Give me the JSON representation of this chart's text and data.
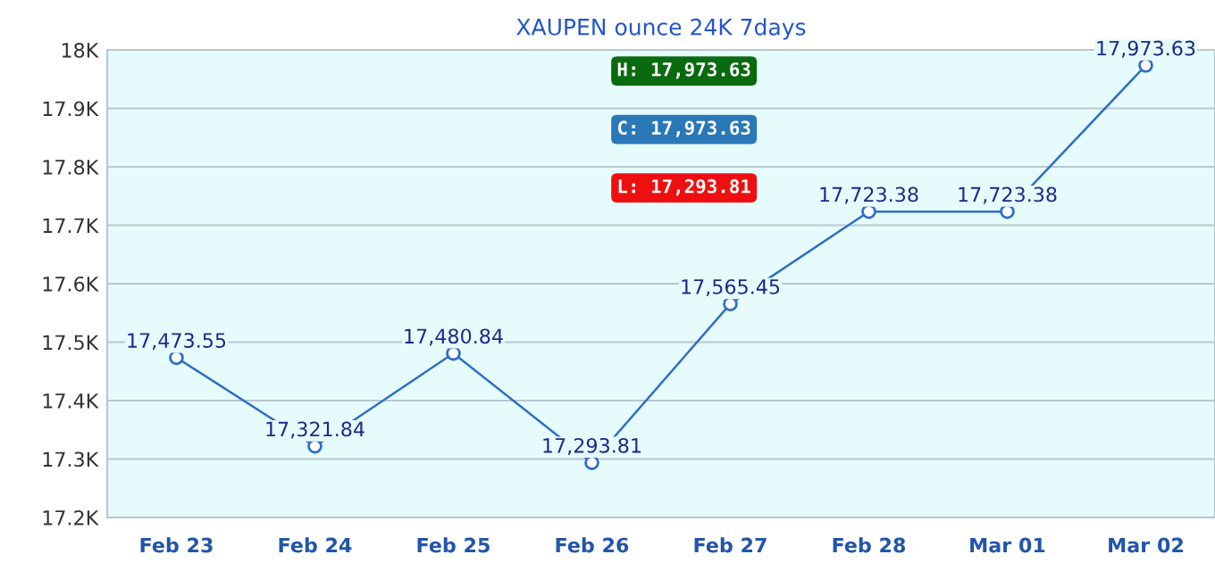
{
  "chart_data": {
    "type": "line",
    "title": "XAUPEN ounce 24K 7days",
    "categories": [
      "Feb 23",
      "Feb 24",
      "Feb 25",
      "Feb 26",
      "Feb 27",
      "Feb 28",
      "Mar 01",
      "Mar 02"
    ],
    "series": [
      {
        "color": "#2f6fc4",
        "values": [
          17473.55,
          17321.84,
          17480.84,
          17293.81,
          17565.45,
          17723.38,
          17723.38,
          17973.63
        ],
        "value_labels": [
          "17,473.55",
          "17,321.84",
          "17,480.84",
          "17,293.81",
          "17,565.45",
          "17,723.38",
          "17,723.38",
          "17,973.63"
        ]
      }
    ],
    "ylim": [
      17200,
      18000
    ],
    "yticks": [
      {
        "value": 17200,
        "label": "17.2K"
      },
      {
        "value": 17300,
        "label": "17.3K"
      },
      {
        "value": 17400,
        "label": "17.4K"
      },
      {
        "value": 17500,
        "label": "17.5K"
      },
      {
        "value": 17600,
        "label": "17.6K"
      },
      {
        "value": 17700,
        "label": "17.7K"
      },
      {
        "value": 17800,
        "label": "17.8K"
      },
      {
        "value": 17900,
        "label": "17.9K"
      },
      {
        "value": 18000,
        "label": "18K"
      }
    ],
    "grid": "y",
    "marker": "circle",
    "line_style": "solid",
    "legend": false,
    "annotations": [
      "H: 17,973.63",
      "C: 17,973.63",
      "L: 17,293.81"
    ]
  }
}
